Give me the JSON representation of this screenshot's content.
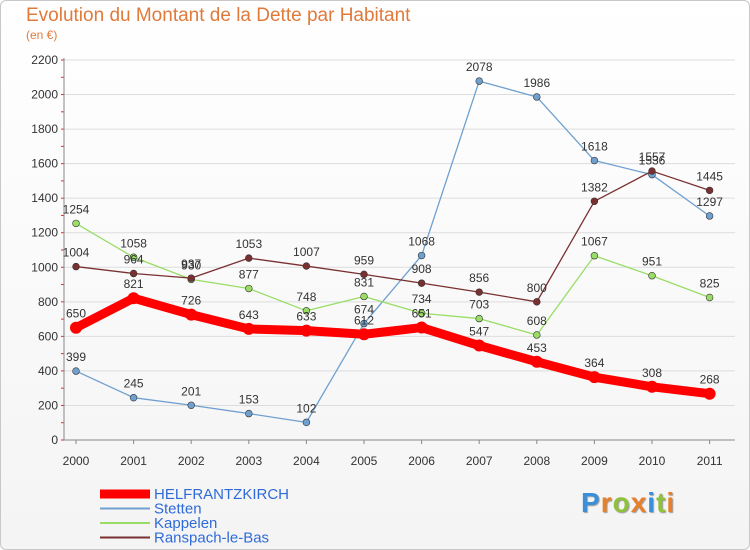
{
  "header": {
    "title": "Evolution du Montant de la Dette par Habitant",
    "subtitle": "(en €)"
  },
  "brand": {
    "letters": [
      "P",
      "r",
      "o",
      "x",
      "i",
      "t",
      "i"
    ],
    "colors": [
      "#3a8fd8",
      "#e8802a",
      "#8fc23a",
      "#e8802a",
      "#3a8fd8",
      "#8fc23a",
      "#e8802a"
    ]
  },
  "chart_data": {
    "type": "line",
    "title": "Evolution du Montant de la Dette par Habitant",
    "subtitle": "(en €)",
    "xlabel": "",
    "ylabel": "",
    "x": [
      "2000",
      "2001",
      "2002",
      "2003",
      "2004",
      "2005",
      "2006",
      "2007",
      "2008",
      "2009",
      "2010",
      "2011"
    ],
    "ylim": [
      0,
      2200
    ],
    "yticks": [
      "0",
      "200",
      "400",
      "600",
      "800",
      "1000",
      "1200",
      "1400",
      "1600",
      "1800",
      "2000",
      "2200"
    ],
    "grid": "horizontal",
    "legend_position": "bottom",
    "series": [
      {
        "name": "HELFRANTZKIRCH",
        "color": "#ff0000",
        "emphasis": true,
        "values": [
          650,
          821,
          726,
          643,
          633,
          612,
          651,
          547,
          453,
          364,
          308,
          268
        ]
      },
      {
        "name": "Stetten",
        "color": "#6fa0d0",
        "emphasis": false,
        "values": [
          399,
          245,
          201,
          153,
          102,
          674,
          1068,
          2078,
          1986,
          1618,
          1536,
          1297
        ]
      },
      {
        "name": "Kappelen",
        "color": "#99dd66",
        "emphasis": false,
        "values": [
          1254,
          1058,
          930,
          877,
          748,
          831,
          734,
          703,
          608,
          1067,
          951,
          825
        ]
      },
      {
        "name": "Ranspach-le-Bas",
        "color": "#7a3030",
        "emphasis": false,
        "values": [
          1004,
          964,
          937,
          1053,
          1007,
          959,
          908,
          856,
          800,
          1382,
          1557,
          1445
        ]
      }
    ]
  }
}
